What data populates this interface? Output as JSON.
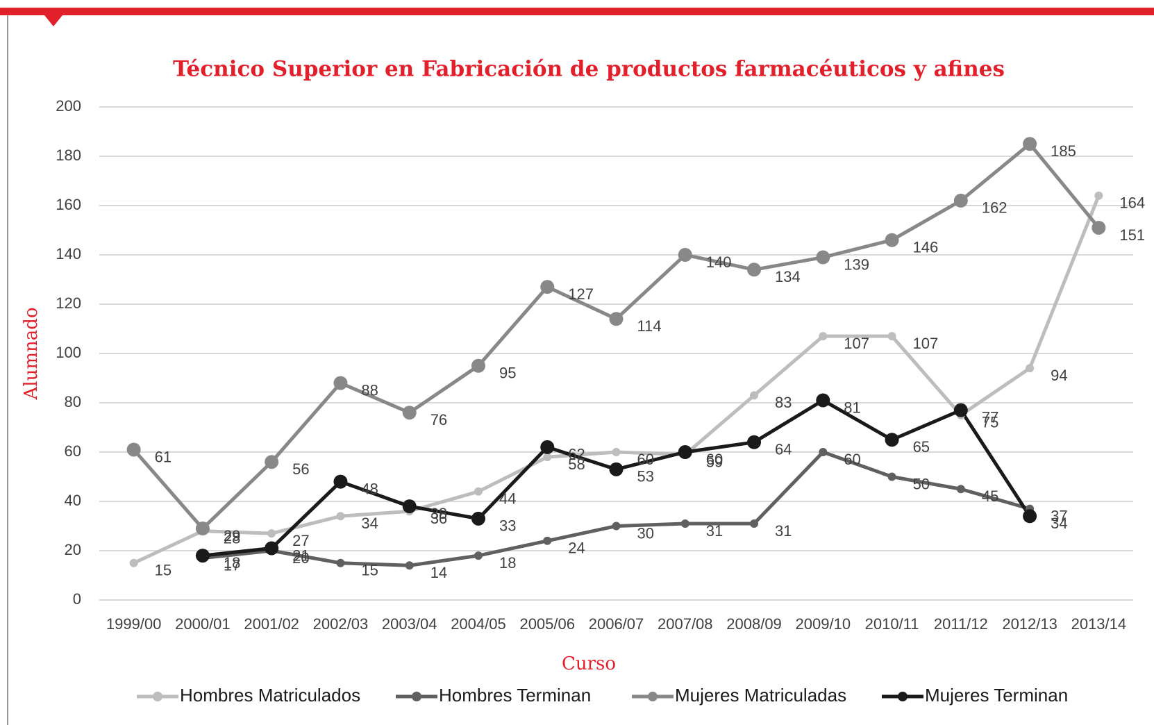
{
  "chart_data": {
    "type": "line",
    "title": "Técnico Superior en Fabricación de productos farmacéuticos y afines",
    "x_label": "Curso",
    "y_label": "Alumnado",
    "categories": [
      "1999/00",
      "2000/01",
      "2001/02",
      "2002/03",
      "2003/04",
      "2004/05",
      "2005/06",
      "2006/07",
      "2007/08",
      "2008/09",
      "2009/10",
      "2010/11",
      "2011/12",
      "2012/13",
      "2013/14"
    ],
    "series": [
      {
        "name": "Hombres Matriculados",
        "color": "#bdbdbd",
        "values": [
          15,
          28,
          27,
          34,
          36,
          44,
          58,
          60,
          59,
          83,
          107,
          107,
          75,
          94,
          164
        ]
      },
      {
        "name": "Hombres Terminan",
        "color": "#606060",
        "values": [
          null,
          17,
          20,
          15,
          14,
          18,
          24,
          30,
          31,
          31,
          60,
          50,
          45,
          37,
          null
        ]
      },
      {
        "name": "Mujeres Matriculadas",
        "color": "#888888",
        "values": [
          61,
          29,
          56,
          88,
          76,
          95,
          127,
          114,
          140,
          134,
          139,
          146,
          162,
          185,
          151
        ]
      },
      {
        "name": "Mujeres Terminan",
        "color": "#1a1a1a",
        "values": [
          null,
          18,
          21,
          48,
          38,
          33,
          62,
          53,
          60,
          64,
          81,
          65,
          77,
          34,
          null
        ]
      }
    ],
    "ylim": [
      0,
      200
    ],
    "yticks": [
      0,
      20,
      40,
      60,
      80,
      100,
      120,
      140,
      160,
      180,
      200
    ],
    "grid": true,
    "legend": "bottom"
  }
}
